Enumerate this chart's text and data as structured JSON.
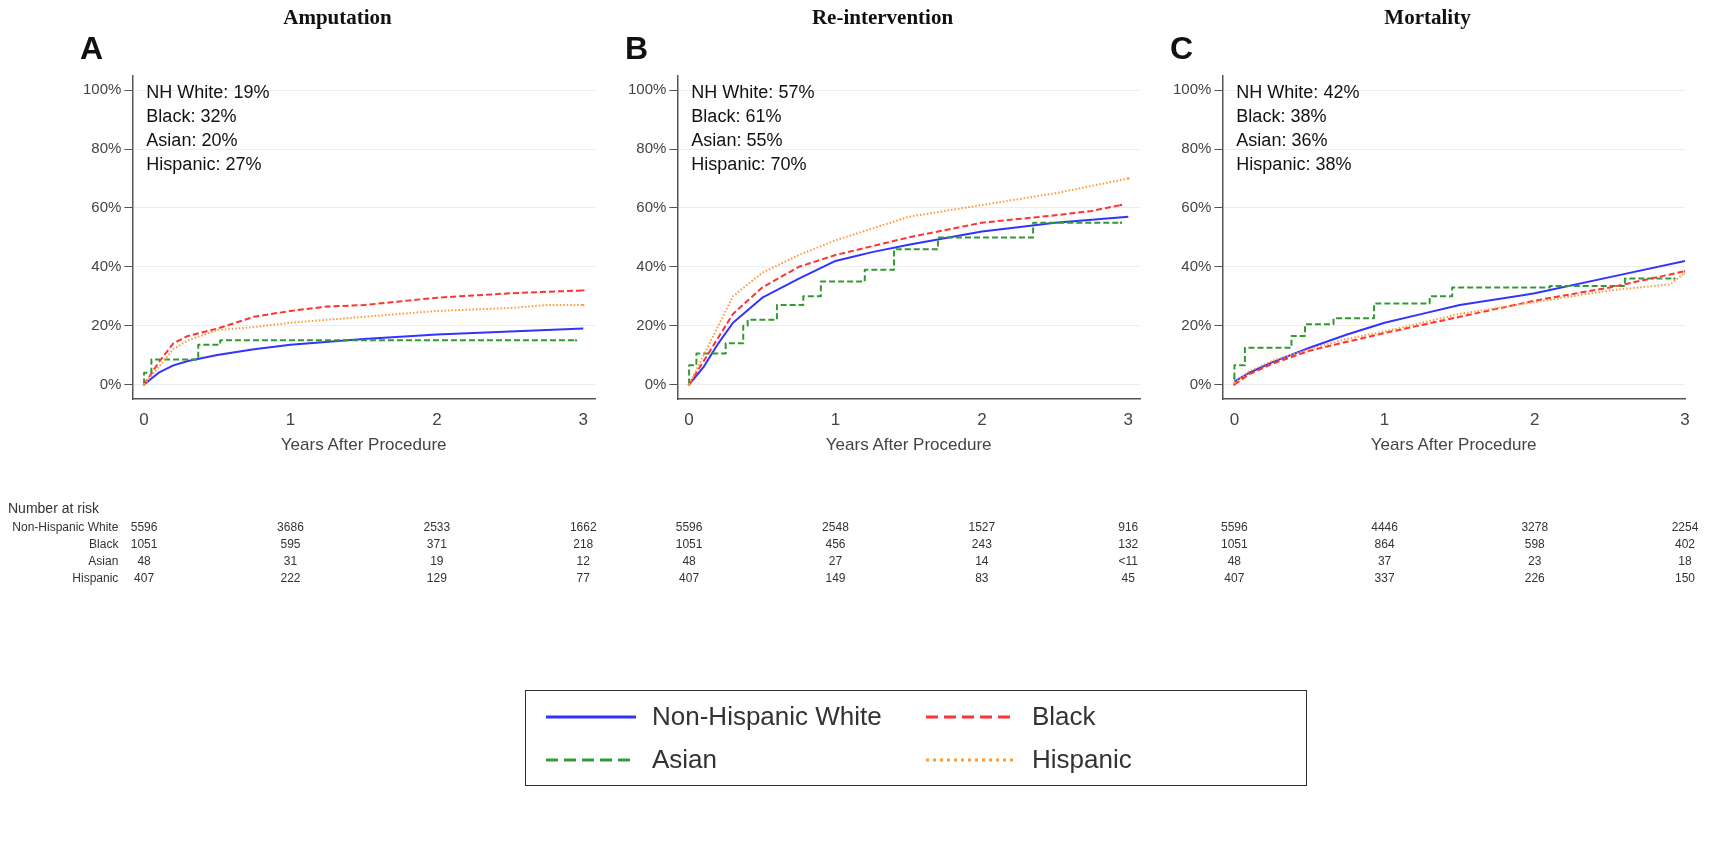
{
  "chart_data": [
    {
      "type": "line",
      "title": "Amputation",
      "subtitle": "A",
      "xlabel": "Years After Procedure",
      "xlim": [
        -0.08,
        3.08
      ],
      "xticks": [
        0,
        1,
        2,
        3
      ],
      "ylim": [
        -5,
        105
      ],
      "yticks": [
        {
          "value": 0,
          "label": "0%"
        },
        {
          "value": 20,
          "label": "20%"
        },
        {
          "value": 40,
          "label": "40%"
        },
        {
          "value": 60,
          "label": "60%"
        },
        {
          "value": 80,
          "label": "80%"
        },
        {
          "value": 100,
          "label": "100%"
        }
      ],
      "grid": "y",
      "legend": "bottom",
      "series": [
        {
          "name": "Non-Hispanic White",
          "color": "#3333ff",
          "line_style": "solid",
          "x": [
            0,
            0.1,
            0.2,
            0.3,
            0.5,
            0.75,
            1.0,
            1.5,
            2.0,
            2.5,
            3.0
          ],
          "values": [
            0,
            4,
            6.5,
            8,
            10,
            12,
            13.5,
            15.5,
            17,
            18,
            19
          ]
        },
        {
          "name": "Black",
          "color": "#ff3333",
          "line_style": "dashed",
          "x": [
            0,
            0.1,
            0.2,
            0.3,
            0.5,
            0.75,
            1.0,
            1.25,
            1.5,
            2.0,
            2.5,
            3.0
          ],
          "values": [
            0,
            7.5,
            14,
            16.5,
            19,
            23,
            25,
            26.5,
            27,
            29.5,
            31,
            32
          ]
        },
        {
          "name": "Asian",
          "color": "#339933",
          "line_style": "dashed",
          "type": "step",
          "x": [
            0,
            0.05,
            0.37,
            0.52,
            2.95
          ],
          "values": [
            0,
            4,
            8.5,
            13.5,
            15
          ]
        },
        {
          "name": "Hispanic",
          "color": "#ff9933",
          "line_style": "dotted",
          "x": [
            0,
            0.1,
            0.2,
            0.3,
            0.5,
            0.75,
            1.0,
            1.5,
            2.0,
            2.5,
            2.75,
            3.0
          ],
          "values": [
            0,
            6,
            12,
            15,
            18.5,
            19.5,
            21,
            23,
            25,
            26,
            27,
            27
          ]
        }
      ],
      "annotations": [
        "NH White: 19%",
        "Black: 32%",
        "Asian: 20%",
        "Hispanic: 27%",
        "5596",
        "3686",
        "2533",
        "1662",
        "1051",
        "595",
        "371",
        "218",
        "48",
        "31",
        "19",
        "12",
        "407",
        "222",
        "129",
        "77",
        "Number at risk",
        "Non-Hispanic White",
        "Black",
        "Asian",
        "Hispanic"
      ]
    },
    {
      "type": "line",
      "title": "Re-intervention",
      "subtitle": "B",
      "xlabel": "Years After Procedure",
      "xlim": [
        -0.08,
        3.08
      ],
      "xticks": [
        0,
        1,
        2,
        3
      ],
      "ylim": [
        -5,
        105
      ],
      "yticks": [
        {
          "value": 0,
          "label": "0%"
        },
        {
          "value": 20,
          "label": "20%"
        },
        {
          "value": 40,
          "label": "40%"
        },
        {
          "value": 60,
          "label": "60%"
        },
        {
          "value": 80,
          "label": "80%"
        },
        {
          "value": 100,
          "label": "100%"
        }
      ],
      "grid": "y",
      "series": [
        {
          "color": "#3333ff",
          "line_style": "solid",
          "x": [
            0,
            0.1,
            0.2,
            0.3,
            0.5,
            0.75,
            1.0,
            1.25,
            1.5,
            2.0,
            2.5,
            3.0
          ],
          "values": [
            0,
            6,
            14,
            21,
            29.5,
            36,
            42,
            45,
            47.5,
            52,
            55,
            57
          ]
        },
        {
          "color": "#ff3333",
          "line_style": "dashed",
          "x": [
            0,
            0.1,
            0.2,
            0.3,
            0.5,
            0.75,
            1.0,
            1.5,
            2.0,
            2.5,
            2.75,
            2.95
          ],
          "values": [
            0,
            8,
            16,
            24,
            33,
            40,
            44,
            50,
            55,
            57.5,
            59,
            61
          ]
        },
        {
          "color": "#339933",
          "line_style": "dashed",
          "type": "step",
          "x": [
            0,
            0.05,
            0.25,
            0.37,
            0.4,
            0.6,
            0.78,
            0.9,
            1.2,
            1.4,
            1.7,
            2.35,
            2.95
          ],
          "values": [
            0,
            6.5,
            10.5,
            14,
            20,
            22,
            27,
            30,
            35,
            39,
            46,
            50,
            55
          ]
        },
        {
          "color": "#ff9933",
          "line_style": "dotted",
          "x": [
            0,
            0.1,
            0.2,
            0.3,
            0.5,
            0.75,
            1.0,
            1.5,
            2.0,
            2.5,
            3.0
          ],
          "values": [
            0,
            10,
            20,
            30,
            38,
            44,
            49,
            57,
            61,
            65,
            70
          ]
        }
      ],
      "annotations": [
        "NH White: 57%",
        "Black: 61%",
        "Asian: 55%",
        "Hispanic: 70%",
        "5596",
        "2548",
        "1527",
        "916",
        "1051",
        "456",
        "243",
        "132",
        "48",
        "27",
        "14",
        "<11",
        "407",
        "149",
        "83",
        "45"
      ]
    },
    {
      "type": "line",
      "title": "Mortality",
      "subtitle": "C",
      "xlabel": "Years After Procedure",
      "xlim": [
        -0.08,
        3.0
      ],
      "xticks": [
        0,
        1,
        2,
        3
      ],
      "ylim": [
        -5,
        105
      ],
      "yticks": [
        {
          "value": 0,
          "label": "0%"
        },
        {
          "value": 20,
          "label": "20%"
        },
        {
          "value": 40,
          "label": "40%"
        },
        {
          "value": 60,
          "label": "60%"
        },
        {
          "value": 80,
          "label": "80%"
        },
        {
          "value": 100,
          "label": "100%"
        }
      ],
      "grid": "y",
      "series": [
        {
          "color": "#3333ff",
          "line_style": "solid",
          "x": [
            0,
            0.1,
            0.25,
            0.5,
            0.75,
            1.0,
            1.25,
            1.5,
            2.0,
            2.5,
            3.0
          ],
          "values": [
            1,
            4,
            7.5,
            12.5,
            17,
            21,
            24,
            27,
            31,
            36.5,
            42
          ]
        },
        {
          "color": "#ff3333",
          "line_style": "dashed",
          "x": [
            0,
            0.1,
            0.25,
            0.5,
            0.75,
            1.0,
            1.5,
            2.0,
            2.5,
            3.0
          ],
          "values": [
            0,
            3.5,
            7,
            11.5,
            14.5,
            17.5,
            23,
            28.5,
            33,
            38.5
          ]
        },
        {
          "color": "#339933",
          "line_style": "dashed",
          "type": "step",
          "x": [
            0,
            0.07,
            0.38,
            0.47,
            0.66,
            0.93,
            1.3,
            1.45,
            2.1,
            2.6,
            2.93
          ],
          "values": [
            2,
            6.5,
            12.5,
            16.5,
            20.5,
            22.5,
            27.5,
            30,
            33,
            33.5,
            36
          ]
        },
        {
          "color": "#ff9933",
          "line_style": "dotted",
          "x": [
            0,
            0.1,
            0.25,
            0.5,
            0.75,
            1.0,
            1.5,
            2.0,
            2.5,
            2.9,
            3.0
          ],
          "values": [
            0.5,
            4.5,
            8,
            12,
            15.5,
            18,
            24,
            28,
            32,
            34,
            38
          ]
        }
      ],
      "annotations": [
        "NH White: 42%",
        "Black: 38%",
        "Asian: 36%",
        "Hispanic: 38%",
        "5596",
        "4446",
        "3278",
        "2254",
        "1051",
        "864",
        "598",
        "402",
        "48",
        "37",
        "23",
        "18",
        "407",
        "337",
        "226",
        "150"
      ]
    }
  ]
}
